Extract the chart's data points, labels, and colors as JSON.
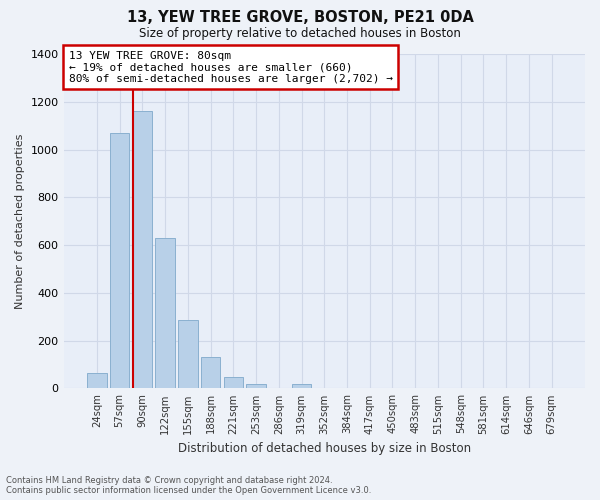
{
  "title": "13, YEW TREE GROVE, BOSTON, PE21 0DA",
  "subtitle": "Size of property relative to detached houses in Boston",
  "xlabel": "Distribution of detached houses by size in Boston",
  "ylabel": "Number of detached properties",
  "bar_labels": [
    "24sqm",
    "57sqm",
    "90sqm",
    "122sqm",
    "155sqm",
    "188sqm",
    "221sqm",
    "253sqm",
    "286sqm",
    "319sqm",
    "352sqm",
    "384sqm",
    "417sqm",
    "450sqm",
    "483sqm",
    "515sqm",
    "548sqm",
    "581sqm",
    "614sqm",
    "646sqm",
    "679sqm"
  ],
  "bar_values": [
    65,
    1070,
    1160,
    630,
    285,
    130,
    48,
    20,
    0,
    20,
    0,
    0,
    0,
    0,
    0,
    0,
    0,
    0,
    0,
    0,
    0
  ],
  "bar_color": "#b8d0e8",
  "bar_edge_color": "#8ab0d0",
  "vline_color": "#cc0000",
  "ylim": [
    0,
    1400
  ],
  "yticks": [
    0,
    200,
    400,
    600,
    800,
    1000,
    1200,
    1400
  ],
  "annotation_text": "13 YEW TREE GROVE: 80sqm\n← 19% of detached houses are smaller (660)\n80% of semi-detached houses are larger (2,702) →",
  "annotation_box_color": "#ffffff",
  "annotation_box_edge": "#cc0000",
  "footer_line1": "Contains HM Land Registry data © Crown copyright and database right 2024.",
  "footer_line2": "Contains public sector information licensed under the Open Government Licence v3.0.",
  "background_color": "#eef2f8",
  "grid_color": "#d0d8e8",
  "plot_bg_color": "#e8eef8"
}
